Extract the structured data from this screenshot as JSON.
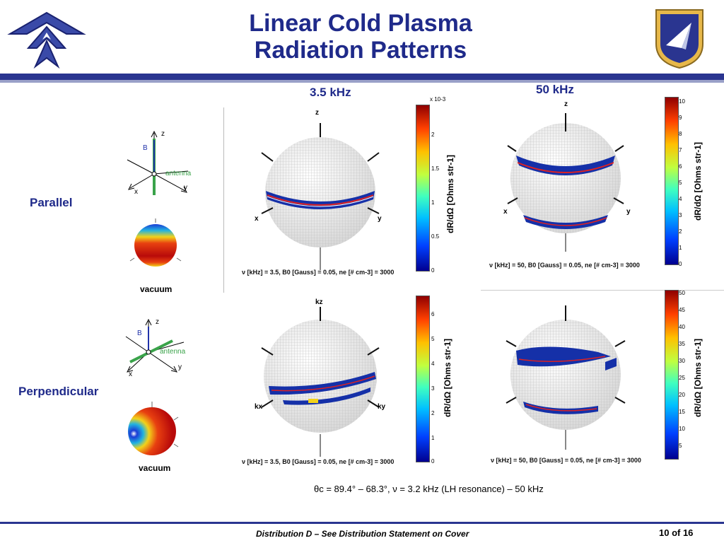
{
  "slide": {
    "title_line1": "Linear Cold Plasma",
    "title_line2": "Radiation Patterns",
    "freq_low": "3.5 kHz",
    "freq_high": "50 kHz",
    "row_parallel": "Parallel",
    "row_perpendicular": "Perpendicular",
    "vacuum": "vacuum",
    "resonance_note": "θc = 89.4° – 68.3°, ν = 3.2 kHz (LH resonance) – 50 kHz",
    "footer": "Distribution D – See Distribution Statement on Cover",
    "page": "10 of 16"
  },
  "diagrams": {
    "parallel": {
      "z": "z",
      "x": "x",
      "y": "y",
      "b": "B",
      "antenna": "antenna"
    },
    "perpendicular": {
      "z": "z",
      "x": "x",
      "y": "y",
      "b": "B",
      "antenna": "antenna"
    }
  },
  "plots": {
    "p1": {
      "axis_z": "z",
      "axis_x": "x",
      "axis_y": "y",
      "caption": "ν [kHz] = 3.5,  B0 [Gauss] = 0.05,  ne [# cm-3] = 3000"
    },
    "p2": {
      "axis_z": "z",
      "axis_x": "x",
      "axis_y": "y",
      "caption": "ν [kHz] = 50,  B0 [Gauss] = 0.05,  ne [# cm-3] = 3000"
    },
    "p3": {
      "axis_z": "kz",
      "axis_x": "kx",
      "axis_y": "ky",
      "caption": "ν [kHz] = 3.5,  B0 [Gauss] = 0.05,  ne [# cm-3] = 3000"
    },
    "p4": {
      "caption": "ν [kHz] = 50,  B0 [Gauss] = 0.05,  ne [# cm-3] = 3000"
    }
  },
  "colorbars": {
    "c1": {
      "label": "dR/dΩ [Ohms str-1]",
      "exponent": "x 10-3",
      "ticks": [
        "2",
        "1.5",
        "1",
        "0.5",
        "0"
      ]
    },
    "c2": {
      "label": "dR/dΩ [Ohms str-1]",
      "ticks": [
        "10",
        "9",
        "8",
        "7",
        "6",
        "5",
        "4",
        "3",
        "2",
        "1",
        "0"
      ]
    },
    "c3": {
      "label": "dR/dΩ [Ohms str-1]",
      "ticks": [
        "6",
        "5",
        "4",
        "3",
        "2",
        "1",
        "0"
      ]
    },
    "c4": {
      "label": "dR/dΩ [Ohms str-1]",
      "ticks": [
        "50",
        "45",
        "40",
        "35",
        "30",
        "25",
        "20",
        "15",
        "10",
        "5"
      ]
    }
  },
  "colors": {
    "navy": "#1f2a8a",
    "antenna_green": "#3aa34a",
    "b_blue": "#2233aa"
  }
}
